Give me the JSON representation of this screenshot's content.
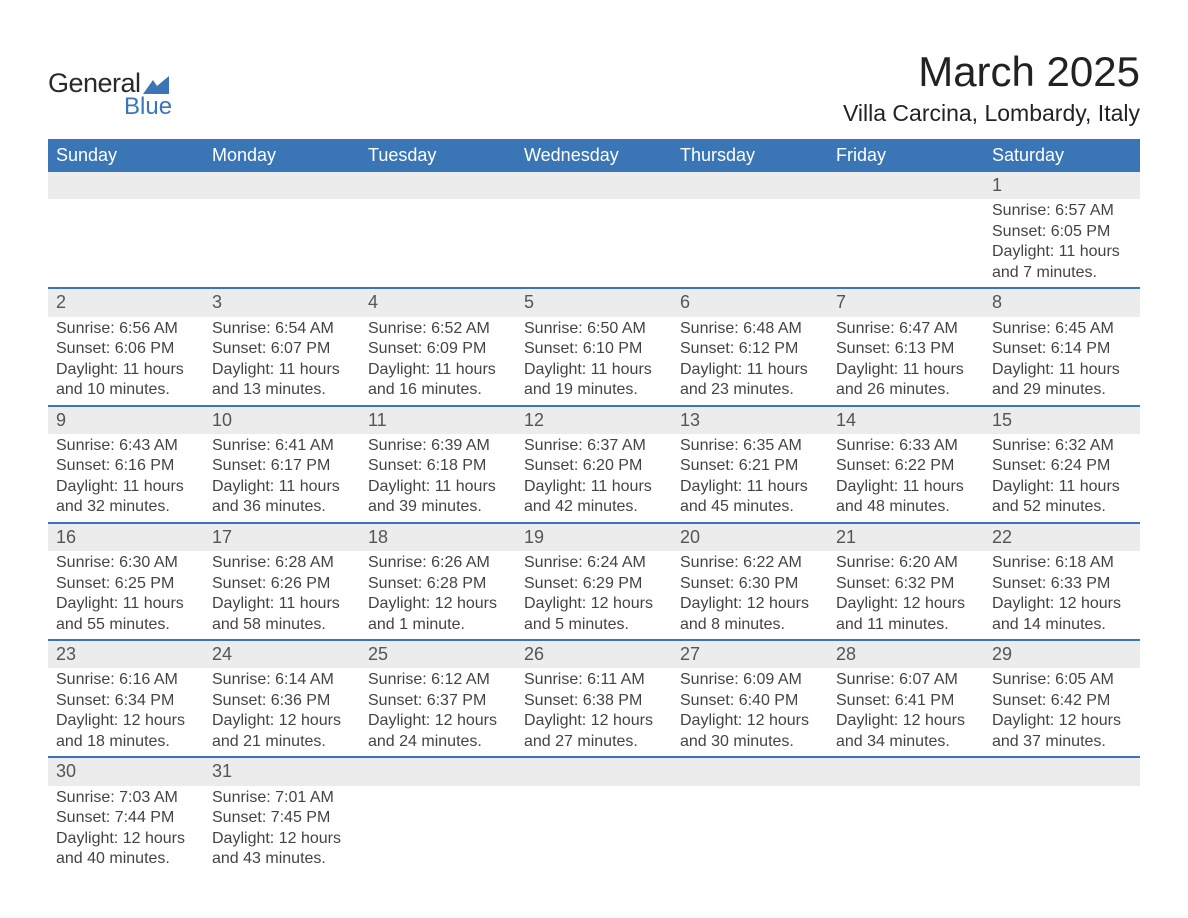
{
  "logo": {
    "text_general": "General",
    "text_blue": "Blue",
    "mark_color": "#3a75b5"
  },
  "title": "March 2025",
  "location": "Villa Carcina, Lombardy, Italy",
  "colors": {
    "header_bg": "#3a75b5",
    "header_text": "#ffffff",
    "daynum_bg": "#ececec",
    "row_border": "#3a75b5",
    "body_text": "#444444"
  },
  "typography": {
    "title_fontsize": 42,
    "location_fontsize": 23,
    "dayheader_fontsize": 18,
    "body_fontsize": 16
  },
  "day_headers": [
    "Sunday",
    "Monday",
    "Tuesday",
    "Wednesday",
    "Thursday",
    "Friday",
    "Saturday"
  ],
  "weeks": [
    [
      null,
      null,
      null,
      null,
      null,
      null,
      {
        "n": "1",
        "sunrise": "6:57 AM",
        "sunset": "6:05 PM",
        "daylight": "11 hours and 7 minutes."
      }
    ],
    [
      {
        "n": "2",
        "sunrise": "6:56 AM",
        "sunset": "6:06 PM",
        "daylight": "11 hours and 10 minutes."
      },
      {
        "n": "3",
        "sunrise": "6:54 AM",
        "sunset": "6:07 PM",
        "daylight": "11 hours and 13 minutes."
      },
      {
        "n": "4",
        "sunrise": "6:52 AM",
        "sunset": "6:09 PM",
        "daylight": "11 hours and 16 minutes."
      },
      {
        "n": "5",
        "sunrise": "6:50 AM",
        "sunset": "6:10 PM",
        "daylight": "11 hours and 19 minutes."
      },
      {
        "n": "6",
        "sunrise": "6:48 AM",
        "sunset": "6:12 PM",
        "daylight": "11 hours and 23 minutes."
      },
      {
        "n": "7",
        "sunrise": "6:47 AM",
        "sunset": "6:13 PM",
        "daylight": "11 hours and 26 minutes."
      },
      {
        "n": "8",
        "sunrise": "6:45 AM",
        "sunset": "6:14 PM",
        "daylight": "11 hours and 29 minutes."
      }
    ],
    [
      {
        "n": "9",
        "sunrise": "6:43 AM",
        "sunset": "6:16 PM",
        "daylight": "11 hours and 32 minutes."
      },
      {
        "n": "10",
        "sunrise": "6:41 AM",
        "sunset": "6:17 PM",
        "daylight": "11 hours and 36 minutes."
      },
      {
        "n": "11",
        "sunrise": "6:39 AM",
        "sunset": "6:18 PM",
        "daylight": "11 hours and 39 minutes."
      },
      {
        "n": "12",
        "sunrise": "6:37 AM",
        "sunset": "6:20 PM",
        "daylight": "11 hours and 42 minutes."
      },
      {
        "n": "13",
        "sunrise": "6:35 AM",
        "sunset": "6:21 PM",
        "daylight": "11 hours and 45 minutes."
      },
      {
        "n": "14",
        "sunrise": "6:33 AM",
        "sunset": "6:22 PM",
        "daylight": "11 hours and 48 minutes."
      },
      {
        "n": "15",
        "sunrise": "6:32 AM",
        "sunset": "6:24 PM",
        "daylight": "11 hours and 52 minutes."
      }
    ],
    [
      {
        "n": "16",
        "sunrise": "6:30 AM",
        "sunset": "6:25 PM",
        "daylight": "11 hours and 55 minutes."
      },
      {
        "n": "17",
        "sunrise": "6:28 AM",
        "sunset": "6:26 PM",
        "daylight": "11 hours and 58 minutes."
      },
      {
        "n": "18",
        "sunrise": "6:26 AM",
        "sunset": "6:28 PM",
        "daylight": "12 hours and 1 minute."
      },
      {
        "n": "19",
        "sunrise": "6:24 AM",
        "sunset": "6:29 PM",
        "daylight": "12 hours and 5 minutes."
      },
      {
        "n": "20",
        "sunrise": "6:22 AM",
        "sunset": "6:30 PM",
        "daylight": "12 hours and 8 minutes."
      },
      {
        "n": "21",
        "sunrise": "6:20 AM",
        "sunset": "6:32 PM",
        "daylight": "12 hours and 11 minutes."
      },
      {
        "n": "22",
        "sunrise": "6:18 AM",
        "sunset": "6:33 PM",
        "daylight": "12 hours and 14 minutes."
      }
    ],
    [
      {
        "n": "23",
        "sunrise": "6:16 AM",
        "sunset": "6:34 PM",
        "daylight": "12 hours and 18 minutes."
      },
      {
        "n": "24",
        "sunrise": "6:14 AM",
        "sunset": "6:36 PM",
        "daylight": "12 hours and 21 minutes."
      },
      {
        "n": "25",
        "sunrise": "6:12 AM",
        "sunset": "6:37 PM",
        "daylight": "12 hours and 24 minutes."
      },
      {
        "n": "26",
        "sunrise": "6:11 AM",
        "sunset": "6:38 PM",
        "daylight": "12 hours and 27 minutes."
      },
      {
        "n": "27",
        "sunrise": "6:09 AM",
        "sunset": "6:40 PM",
        "daylight": "12 hours and 30 minutes."
      },
      {
        "n": "28",
        "sunrise": "6:07 AM",
        "sunset": "6:41 PM",
        "daylight": "12 hours and 34 minutes."
      },
      {
        "n": "29",
        "sunrise": "6:05 AM",
        "sunset": "6:42 PM",
        "daylight": "12 hours and 37 minutes."
      }
    ],
    [
      {
        "n": "30",
        "sunrise": "7:03 AM",
        "sunset": "7:44 PM",
        "daylight": "12 hours and 40 minutes."
      },
      {
        "n": "31",
        "sunrise": "7:01 AM",
        "sunset": "7:45 PM",
        "daylight": "12 hours and 43 minutes."
      },
      null,
      null,
      null,
      null,
      null
    ]
  ],
  "labels": {
    "sunrise": "Sunrise: ",
    "sunset": "Sunset: ",
    "daylight": "Daylight: "
  }
}
